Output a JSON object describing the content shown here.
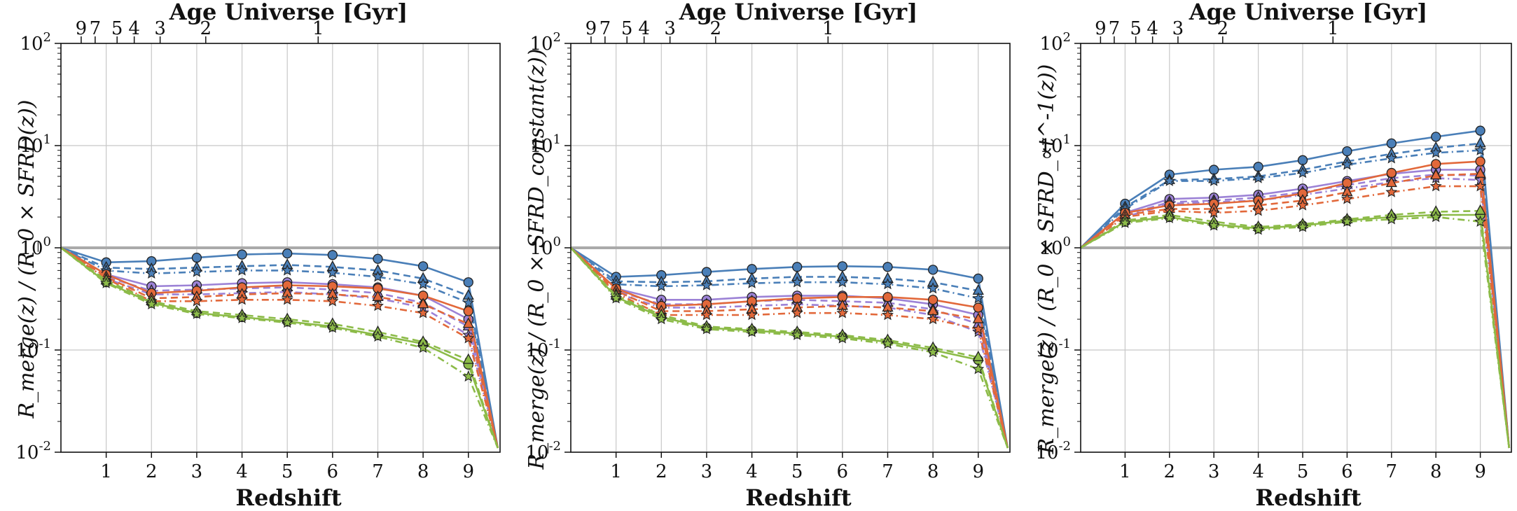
{
  "figure": {
    "top_axis_title": "Age Universe [Gyr]",
    "bottom_axis_title": "Redshift",
    "top_ticks": [
      "9",
      "7",
      "5",
      "4",
      "3",
      "2",
      "1"
    ],
    "top_tick_ages": [
      9,
      7,
      5,
      4,
      3,
      2,
      1
    ],
    "colors": {
      "blue": "#4a7fb8",
      "orange": "#e2683a",
      "purple": "#9c82d6",
      "green": "#8cbb48",
      "reference": "#aaaaaa",
      "grid": "#c8c8c8"
    }
  },
  "chart_data": [
    {
      "type": "line",
      "ylabel": "R_merge(z) / (R_0 × SFRD(z))",
      "xlabel": "Redshift",
      "yscale": "log",
      "ylim": [
        0.01,
        100
      ],
      "xlim": [
        0,
        9.7
      ],
      "xticks": [
        1,
        2,
        3,
        4,
        5,
        6,
        7,
        8,
        9
      ],
      "yticks": [
        "10^-2",
        "10^-1",
        "10^0",
        "10^1",
        "10^2"
      ],
      "reference_line": 1,
      "x": [
        1,
        2,
        3,
        4,
        5,
        6,
        7,
        8,
        9
      ],
      "series": [
        {
          "name": "blue-circle",
          "color": "blue",
          "marker": "circle",
          "style": "solid",
          "values": [
            0.72,
            0.74,
            0.8,
            0.86,
            0.88,
            0.85,
            0.78,
            0.66,
            0.46
          ]
        },
        {
          "name": "blue-triangle",
          "color": "blue",
          "marker": "triangle",
          "style": "dash",
          "values": [
            0.64,
            0.62,
            0.64,
            0.66,
            0.68,
            0.65,
            0.6,
            0.5,
            0.34
          ]
        },
        {
          "name": "blue-star",
          "color": "blue",
          "marker": "star",
          "style": "dashdot",
          "values": [
            0.6,
            0.56,
            0.58,
            0.6,
            0.6,
            0.57,
            0.52,
            0.44,
            0.29
          ]
        },
        {
          "name": "purple-circle",
          "color": "purple",
          "marker": "circle",
          "style": "solid",
          "values": [
            0.55,
            0.42,
            0.43,
            0.45,
            0.46,
            0.44,
            0.41,
            0.34,
            0.2
          ]
        },
        {
          "name": "purple-triangle",
          "color": "purple",
          "marker": "triangle",
          "style": "dash",
          "values": [
            0.52,
            0.38,
            0.39,
            0.4,
            0.41,
            0.39,
            0.36,
            0.29,
            0.17
          ]
        },
        {
          "name": "purple-star",
          "color": "purple",
          "marker": "star",
          "style": "dashdot",
          "values": [
            0.5,
            0.35,
            0.35,
            0.36,
            0.37,
            0.35,
            0.32,
            0.26,
            0.14
          ]
        },
        {
          "name": "orange-circle",
          "color": "orange",
          "marker": "circle",
          "style": "solid",
          "values": [
            0.55,
            0.36,
            0.38,
            0.41,
            0.43,
            0.42,
            0.4,
            0.34,
            0.24
          ]
        },
        {
          "name": "orange-triangle",
          "color": "orange",
          "marker": "triangle",
          "style": "dash",
          "values": [
            0.52,
            0.32,
            0.33,
            0.35,
            0.36,
            0.35,
            0.33,
            0.28,
            0.18
          ]
        },
        {
          "name": "orange-star",
          "color": "orange",
          "marker": "star",
          "style": "dashdot",
          "values": [
            0.5,
            0.3,
            0.3,
            0.31,
            0.31,
            0.3,
            0.27,
            0.23,
            0.13
          ]
        },
        {
          "name": "green-circle",
          "color": "green",
          "marker": "circle",
          "style": "solid",
          "values": [
            0.46,
            0.29,
            0.23,
            0.21,
            0.19,
            0.17,
            0.14,
            0.115,
            0.072
          ]
        },
        {
          "name": "green-triangle",
          "color": "green",
          "marker": "triangle",
          "style": "dash",
          "values": [
            0.48,
            0.3,
            0.24,
            0.22,
            0.2,
            0.18,
            0.15,
            0.12,
            0.08
          ]
        },
        {
          "name": "green-star",
          "color": "green",
          "marker": "star",
          "style": "dashdot",
          "values": [
            0.45,
            0.28,
            0.225,
            0.205,
            0.185,
            0.165,
            0.135,
            0.105,
            0.055
          ]
        }
      ]
    },
    {
      "type": "line",
      "ylabel": "R_merge(z) / (R_0 × SFRD_constant(z))",
      "xlabel": "Redshift",
      "yscale": "log",
      "ylim": [
        0.01,
        100
      ],
      "xlim": [
        0,
        9.7
      ],
      "xticks": [
        1,
        2,
        3,
        4,
        5,
        6,
        7,
        8,
        9
      ],
      "yticks": [
        "10^-2",
        "10^-1",
        "10^0",
        "10^1",
        "10^2"
      ],
      "reference_line": 1,
      "x": [
        1,
        2,
        3,
        4,
        5,
        6,
        7,
        8,
        9
      ],
      "series": [
        {
          "name": "blue-circle",
          "color": "blue",
          "marker": "circle",
          "style": "solid",
          "values": [
            0.52,
            0.54,
            0.58,
            0.62,
            0.65,
            0.66,
            0.65,
            0.61,
            0.5
          ]
        },
        {
          "name": "blue-triangle",
          "color": "blue",
          "marker": "triangle",
          "style": "dash",
          "values": [
            0.47,
            0.46,
            0.47,
            0.5,
            0.52,
            0.52,
            0.5,
            0.46,
            0.38
          ]
        },
        {
          "name": "blue-star",
          "color": "blue",
          "marker": "star",
          "style": "dashdot",
          "values": [
            0.44,
            0.42,
            0.43,
            0.45,
            0.46,
            0.46,
            0.44,
            0.4,
            0.32
          ]
        },
        {
          "name": "purple-circle",
          "color": "purple",
          "marker": "circle",
          "style": "solid",
          "values": [
            0.4,
            0.31,
            0.31,
            0.33,
            0.34,
            0.34,
            0.32,
            0.28,
            0.22
          ]
        },
        {
          "name": "purple-triangle",
          "color": "purple",
          "marker": "triangle",
          "style": "dash",
          "values": [
            0.38,
            0.28,
            0.28,
            0.3,
            0.31,
            0.3,
            0.29,
            0.25,
            0.18
          ]
        },
        {
          "name": "purple-star",
          "color": "purple",
          "marker": "star",
          "style": "dashdot",
          "values": [
            0.36,
            0.26,
            0.26,
            0.27,
            0.28,
            0.27,
            0.26,
            0.22,
            0.15
          ]
        },
        {
          "name": "orange-circle",
          "color": "orange",
          "marker": "circle",
          "style": "solid",
          "values": [
            0.4,
            0.27,
            0.28,
            0.3,
            0.32,
            0.33,
            0.33,
            0.31,
            0.26
          ]
        },
        {
          "name": "orange-triangle",
          "color": "orange",
          "marker": "triangle",
          "style": "dash",
          "values": [
            0.38,
            0.24,
            0.24,
            0.25,
            0.26,
            0.27,
            0.26,
            0.24,
            0.2
          ]
        },
        {
          "name": "orange-star",
          "color": "orange",
          "marker": "star",
          "style": "dashdot",
          "values": [
            0.36,
            0.22,
            0.22,
            0.22,
            0.23,
            0.23,
            0.22,
            0.2,
            0.16
          ]
        },
        {
          "name": "green-circle",
          "color": "green",
          "marker": "circle",
          "style": "solid",
          "values": [
            0.33,
            0.21,
            0.165,
            0.155,
            0.145,
            0.135,
            0.12,
            0.1,
            0.08
          ]
        },
        {
          "name": "green-triangle",
          "color": "green",
          "marker": "triangle",
          "style": "dash",
          "values": [
            0.34,
            0.22,
            0.17,
            0.16,
            0.15,
            0.14,
            0.125,
            0.105,
            0.085
          ]
        },
        {
          "name": "green-star",
          "color": "green",
          "marker": "star",
          "style": "dashdot",
          "values": [
            0.32,
            0.2,
            0.16,
            0.15,
            0.14,
            0.13,
            0.115,
            0.095,
            0.065
          ]
        }
      ]
    },
    {
      "type": "line",
      "ylabel": "R_merge(z) / (R_0 × SFRD_∝t^-1(z))",
      "xlabel": "Redshift",
      "yscale": "log",
      "ylim": [
        0.01,
        100
      ],
      "xlim": [
        0,
        9.7
      ],
      "xticks": [
        1,
        2,
        3,
        4,
        5,
        6,
        7,
        8,
        9
      ],
      "yticks": [
        "10^-2",
        "10^-1",
        "10^0",
        "10^1",
        "10^2"
      ],
      "reference_line": 1,
      "x": [
        1,
        2,
        3,
        4,
        5,
        6,
        7,
        8,
        9
      ],
      "series": [
        {
          "name": "blue-circle",
          "color": "blue",
          "marker": "circle",
          "style": "solid",
          "values": [
            2.7,
            5.2,
            5.8,
            6.2,
            7.2,
            8.8,
            10.5,
            12.2,
            14.0
          ]
        },
        {
          "name": "blue-triangle",
          "color": "blue",
          "marker": "triangle",
          "style": "dash",
          "values": [
            2.5,
            4.6,
            4.7,
            5.0,
            5.8,
            7.0,
            8.3,
            9.5,
            10.5
          ]
        },
        {
          "name": "blue-star",
          "color": "blue",
          "marker": "star",
          "style": "dashdot",
          "values": [
            2.4,
            4.5,
            4.5,
            4.8,
            5.4,
            6.5,
            7.5,
            8.5,
            9.0
          ]
        },
        {
          "name": "purple-circle",
          "color": "purple",
          "marker": "circle",
          "style": "solid",
          "values": [
            2.2,
            3.0,
            3.1,
            3.3,
            3.8,
            4.5,
            5.3,
            5.8,
            5.8
          ]
        },
        {
          "name": "purple-triangle",
          "color": "purple",
          "marker": "triangle",
          "style": "dash",
          "values": [
            2.1,
            2.8,
            2.9,
            3.1,
            3.5,
            4.1,
            4.8,
            5.2,
            5.1
          ]
        },
        {
          "name": "purple-star",
          "color": "purple",
          "marker": "star",
          "style": "dashdot",
          "values": [
            2.0,
            2.7,
            2.8,
            2.9,
            3.3,
            3.8,
            4.4,
            4.8,
            4.6
          ]
        },
        {
          "name": "orange-circle",
          "color": "orange",
          "marker": "circle",
          "style": "solid",
          "values": [
            2.2,
            2.6,
            2.7,
            2.9,
            3.4,
            4.3,
            5.4,
            6.6,
            7.0
          ]
        },
        {
          "name": "orange-triangle",
          "color": "orange",
          "marker": "triangle",
          "style": "dash",
          "values": [
            2.1,
            2.4,
            2.4,
            2.6,
            2.9,
            3.5,
            4.3,
            5.1,
            5.3
          ]
        },
        {
          "name": "orange-star",
          "color": "orange",
          "marker": "star",
          "style": "dashdot",
          "values": [
            2.0,
            2.3,
            2.2,
            2.3,
            2.6,
            3.0,
            3.5,
            4.0,
            4.0
          ]
        },
        {
          "name": "green-circle",
          "color": "green",
          "marker": "circle",
          "style": "solid",
          "values": [
            1.8,
            2.0,
            1.7,
            1.55,
            1.65,
            1.85,
            2.0,
            2.1,
            2.1
          ]
        },
        {
          "name": "green-triangle",
          "color": "green",
          "marker": "triangle",
          "style": "dash",
          "values": [
            1.85,
            2.1,
            1.8,
            1.6,
            1.7,
            1.9,
            2.1,
            2.25,
            2.3
          ]
        },
        {
          "name": "green-star",
          "color": "green",
          "marker": "star",
          "style": "dashdot",
          "values": [
            1.75,
            1.95,
            1.65,
            1.5,
            1.6,
            1.8,
            1.9,
            2.0,
            1.8
          ]
        }
      ]
    }
  ]
}
